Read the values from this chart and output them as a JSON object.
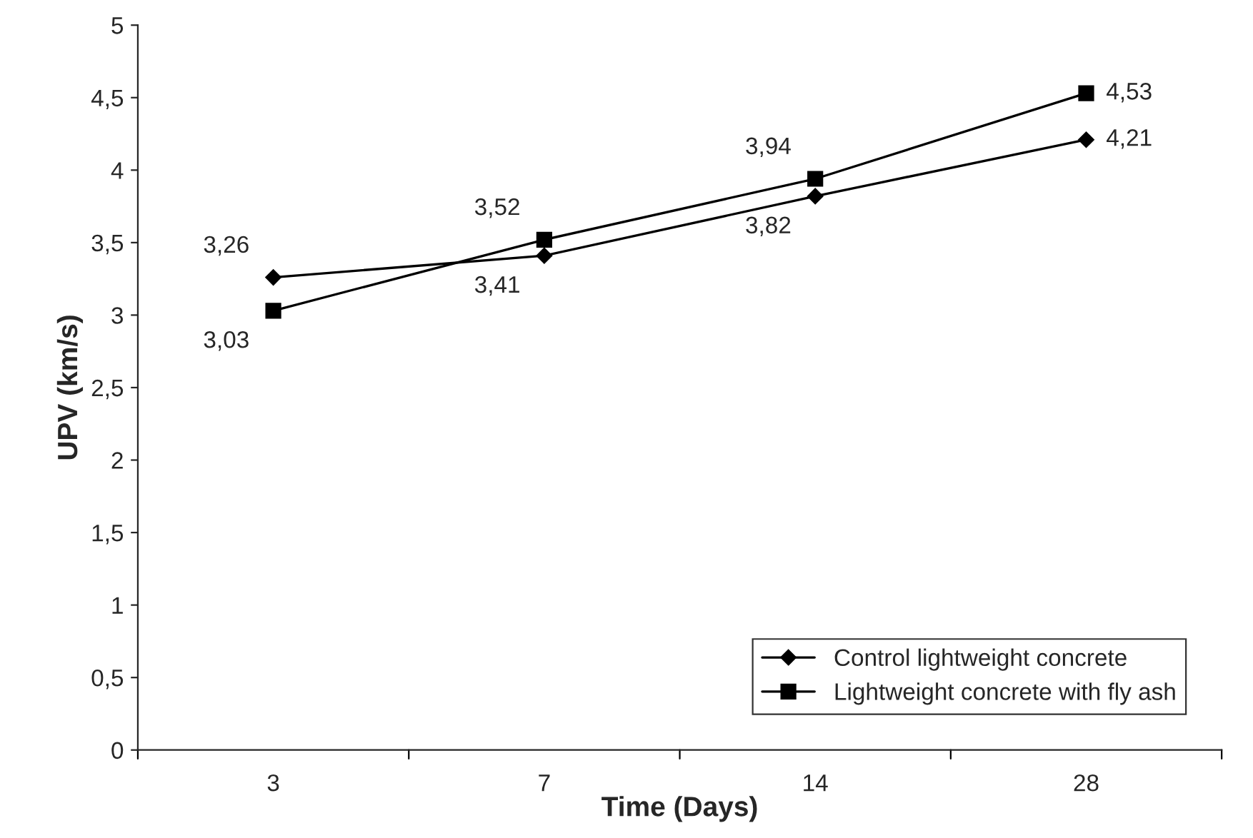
{
  "chart_data": {
    "type": "line",
    "xlabel": "Time (Days)",
    "ylabel": "UPV (km/s)",
    "categories": [
      "3",
      "7",
      "14",
      "28"
    ],
    "series": [
      {
        "name": "Control lightweight concrete",
        "color": "#000000",
        "marker": "diamond",
        "values": [
          3.26,
          3.41,
          3.82,
          4.21
        ],
        "value_labels": [
          "3,26",
          "3,41",
          "3,82",
          "4,21"
        ]
      },
      {
        "name": "Lightweight concrete with fly ash",
        "color": "#000000",
        "marker": "square",
        "values": [
          3.03,
          3.52,
          3.94,
          4.53
        ],
        "value_labels": [
          "3,03",
          "3,52",
          "3,94",
          "4,53"
        ]
      }
    ],
    "ylim": [
      0,
      5
    ],
    "yticks": [
      0,
      {
        "value": 0.5,
        "label": "0,5"
      },
      1,
      {
        "value": 1.5,
        "label": "1,5"
      },
      2,
      {
        "value": 2.5,
        "label": "2,5"
      },
      3,
      {
        "value": 3.5,
        "label": "3,5"
      },
      4,
      {
        "value": 4.5,
        "label": "4,5"
      },
      5
    ],
    "grid": false,
    "legend": "bottom right",
    "line_style": "solid"
  }
}
